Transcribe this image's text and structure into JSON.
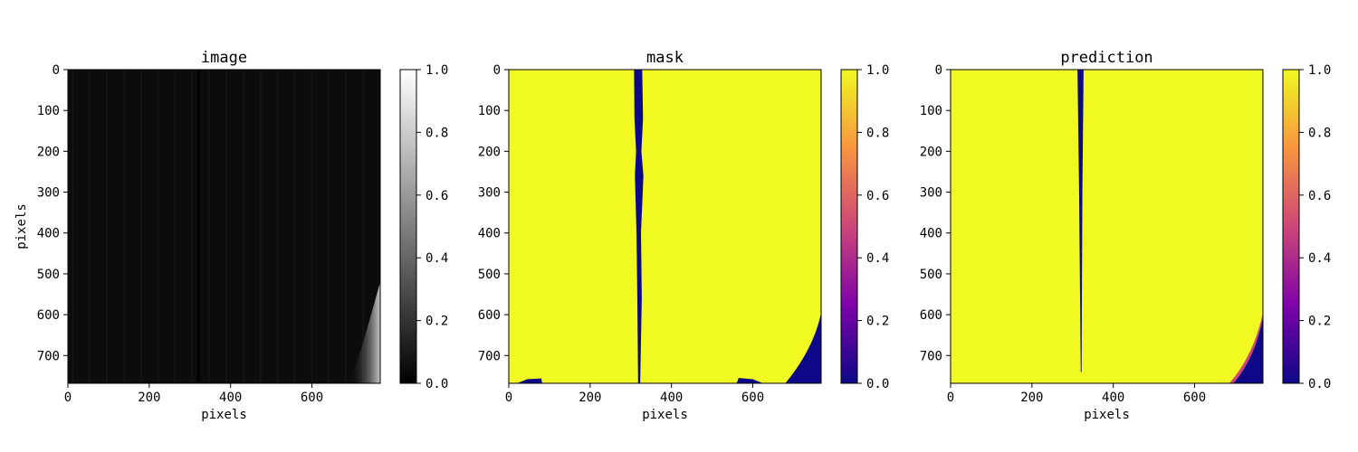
{
  "chart_data": [
    {
      "type": "heatmap",
      "title": "image",
      "xlabel": "pixels",
      "ylabel": "pixels",
      "xlim": [
        0,
        768
      ],
      "ylim": [
        768,
        0
      ],
      "xticks": [
        0,
        200,
        400,
        600
      ],
      "yticks": [
        0,
        100,
        200,
        300,
        400,
        500,
        600,
        700
      ],
      "colormap": "gray",
      "colorbar": {
        "range": [
          0.0,
          1.0
        ],
        "ticks": [
          "0.0",
          "0.2",
          "0.4",
          "0.6",
          "0.8",
          "1.0"
        ]
      }
    },
    {
      "type": "heatmap",
      "title": "mask",
      "xlabel": "pixels",
      "ylabel": "",
      "xlim": [
        0,
        768
      ],
      "ylim": [
        768,
        0
      ],
      "xticks": [
        0,
        200,
        400,
        600
      ],
      "yticks": [
        0,
        100,
        200,
        300,
        400,
        500,
        600,
        700
      ],
      "colormap": "plasma",
      "colorbar": {
        "range": [
          0.0,
          1.0
        ],
        "ticks": [
          "0.0",
          "0.2",
          "0.4",
          "0.6",
          "0.8",
          "1.0"
        ]
      }
    },
    {
      "type": "heatmap",
      "title": "prediction",
      "xlabel": "pixels",
      "ylabel": "",
      "xlim": [
        0,
        768
      ],
      "ylim": [
        768,
        0
      ],
      "xticks": [
        0,
        200,
        400,
        600
      ],
      "yticks": [
        0,
        100,
        200,
        300,
        400,
        500,
        600,
        700
      ],
      "colormap": "plasma",
      "colorbar": {
        "range": [
          0.0,
          1.0
        ],
        "ticks": [
          "0.0",
          "0.2",
          "0.4",
          "0.6",
          "0.8",
          "1.0"
        ]
      }
    }
  ],
  "colors": {
    "plasma_low": "#0d0887",
    "plasma_mid_low": "#7e03a8",
    "plasma_mid": "#cc4778",
    "plasma_mid_high": "#f89540",
    "plasma_high": "#f0f921",
    "gray_low": "#000000",
    "gray_high": "#ffffff",
    "image_background": "#0c0c0c"
  }
}
